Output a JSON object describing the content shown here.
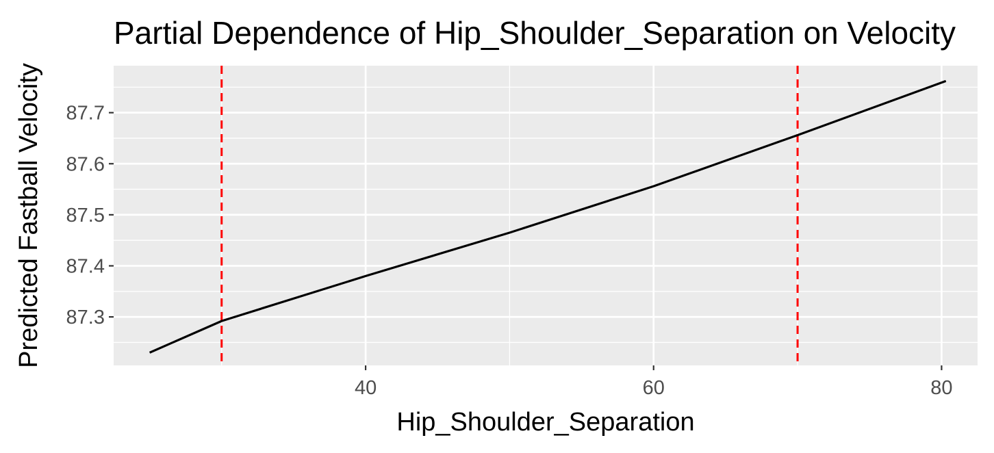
{
  "chart_data": {
    "type": "line",
    "title": "Partial Dependence of Hip_Shoulder_Separation on Velocity",
    "xlabel": "Hip_Shoulder_Separation",
    "ylabel": "Predicted Fastball Velocity",
    "xlim": [
      22.5,
      82.5
    ],
    "ylim": [
      87.205,
      87.792
    ],
    "x_ticks": [
      40,
      60,
      80
    ],
    "y_ticks": [
      87.3,
      87.4,
      87.5,
      87.6,
      87.7
    ],
    "x_tick_labels": [
      "40",
      "60",
      "80"
    ],
    "y_tick_labels": [
      "87.3",
      "87.4",
      "87.5",
      "87.6",
      "87.7"
    ],
    "grid": true,
    "series": [
      {
        "color": "#000000",
        "x": [
          25,
          30,
          40,
          50,
          60,
          70,
          80.3
        ],
        "y": [
          87.23,
          87.292,
          87.38,
          87.465,
          87.556,
          87.656,
          87.762
        ]
      }
    ],
    "reference_lines": [
      {
        "axis": "x",
        "value": 30,
        "color": "#ff0000",
        "style": "dashed"
      },
      {
        "axis": "x",
        "value": 70,
        "color": "#ff0000",
        "style": "dashed"
      }
    ],
    "panel_background": "#ebebeb",
    "grid_color": "#ffffff"
  }
}
